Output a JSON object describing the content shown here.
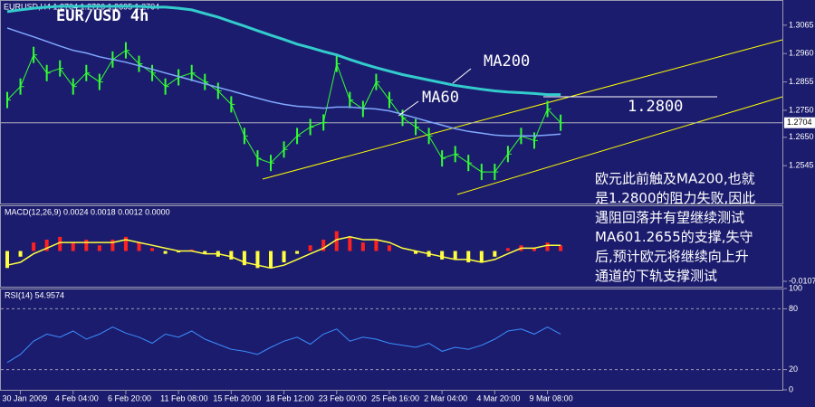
{
  "chart_data": [
    {
      "type": "line",
      "title": "EUR/USD 4h",
      "subtitle": "EURUSD,H4 1.2704 1.2726 1.2695 1.2704",
      "ylim": [
        1.2405,
        1.3155
      ],
      "yticks": [
        1.3065,
        {
          "value": 1.296,
          "label": "1.2960"
        },
        1.2855,
        {
          "value": 1.275,
          "label": "1.2750"
        },
        {
          "value": 1.265,
          "label": "1.2650"
        },
        1.2545
      ],
      "last_price": 1.2704,
      "hline": {
        "value": 1.28,
        "label": "1.2800"
      },
      "note": [
        "欧元此前触及MA200,也就",
        "是1.2800的阻力失败,因此",
        "遇阻回落并有望继续测试",
        "MA601.2655的支撑,失守",
        "后,预计欧元将继续向上升",
        "通道的下轨支撑测试"
      ],
      "series": [
        {
          "color": "#33ff33",
          "values": [
            1.2788,
            1.2838,
            1.2955,
            1.2888,
            1.2905,
            1.2838,
            1.2888,
            1.2855,
            1.2938,
            1.2972,
            1.2922,
            1.2888,
            1.2838,
            1.2872,
            1.2888,
            1.2855,
            1.2822,
            1.2772,
            1.2655,
            1.2572,
            1.2555,
            1.2605,
            1.2655,
            1.2688,
            1.2705,
            1.2922,
            1.2788,
            1.2755,
            1.2855,
            1.2788,
            1.2722,
            1.2688,
            1.2655,
            1.2572,
            1.2588,
            1.2555,
            1.2522,
            1.2522,
            1.2588,
            1.2655,
            1.2638,
            1.2755,
            1.2704
          ]
        },
        {
          "name": "MA200",
          "color": "#33cccc",
          "values": [
            1.3115,
            1.3122,
            1.3128,
            1.3132,
            1.3135,
            1.3135,
            1.3135,
            1.3135,
            1.3135,
            1.3135,
            1.3135,
            1.3132,
            1.3132,
            1.3128,
            1.3122,
            1.3108,
            1.3095,
            1.3078,
            1.3062,
            1.3045,
            1.3028,
            1.3012,
            1.2995,
            1.2982,
            1.2968,
            1.2955,
            1.2938,
            1.2922,
            1.2908,
            1.2895,
            1.2882,
            1.2872,
            1.2862,
            1.2852,
            1.2842,
            1.2835,
            1.2828,
            1.2822,
            1.2818,
            1.2815,
            1.2812,
            1.2808,
            1.2808
          ]
        },
        {
          "name": "MA60",
          "color": "#7fa8ff",
          "values": [
            1.3055,
            1.3038,
            1.3022,
            1.3005,
            1.2988,
            1.2972,
            1.2962,
            1.2948,
            1.2938,
            1.2928,
            1.2915,
            1.2902,
            1.2888,
            1.2875,
            1.2862,
            1.2848,
            1.2835,
            1.2822,
            1.2808,
            1.2795,
            1.2782,
            1.2772,
            1.2765,
            1.2762,
            1.2758,
            1.2762,
            1.2762,
            1.2758,
            1.2755,
            1.2748,
            1.2735,
            1.2722,
            1.2708,
            1.2695,
            1.2682,
            1.2672,
            1.2665,
            1.2658,
            1.2655,
            1.2655,
            1.2655,
            1.2658,
            1.2662
          ]
        }
      ]
    },
    {
      "type": "macd",
      "title": "MACD(12,26,9) 0.0024 0.0018 0.0012 0.0000",
      "ylim": [
        -0.0126,
        0.0158
      ],
      "yticks": [
        -0.0107
      ],
      "series": [
        {
          "color": "#ff2020",
          "values": [
            -0.006,
            -0.002,
            0.003,
            0.004,
            0.005,
            0.003,
            0.004,
            0.002,
            0.004,
            0.005,
            0.003,
            0.001,
            -0.001,
            -0.0005,
            0.0005,
            -0.001,
            -0.002,
            -0.003,
            -0.005,
            -0.006,
            -0.006,
            -0.004,
            -0.001,
            0.002,
            0.004,
            0.007,
            0.005,
            0.003,
            0.004,
            0.002,
            0.0,
            -0.001,
            -0.002,
            -0.003,
            -0.003,
            -0.004,
            -0.004,
            -0.002,
            0.001,
            0.002,
            0.001,
            0.003,
            0.002
          ]
        },
        {
          "color": "#ffff40",
          "values": [
            -0.005,
            -0.004,
            -0.001,
            0.001,
            0.003,
            0.003,
            0.003,
            0.003,
            0.003,
            0.004,
            0.003,
            0.002,
            0.001,
            0.0,
            0.0,
            -0.001,
            -0.001,
            -0.002,
            -0.004,
            -0.005,
            -0.006,
            -0.005,
            -0.003,
            -0.001,
            0.001,
            0.004,
            0.005,
            0.004,
            0.004,
            0.003,
            0.001,
            0.0,
            -0.001,
            -0.002,
            -0.003,
            -0.003,
            -0.004,
            -0.003,
            -0.001,
            0.001,
            0.001,
            0.002,
            0.002
          ]
        }
      ]
    },
    {
      "type": "rsi",
      "title": "RSI(14) 54.9574",
      "ylim": [
        0,
        100
      ],
      "yticks": [
        100,
        80,
        20,
        0
      ],
      "categories": [
        null,
        "30 Jan 2009",
        null,
        null,
        null,
        "4 Feb 04:00",
        null,
        null,
        null,
        "6 Feb 20:00",
        null,
        null,
        null,
        "11 Feb 08:00",
        null,
        null,
        null,
        "15 Feb 20:00",
        null,
        null,
        null,
        "18 Feb 12:00",
        null,
        null,
        null,
        "23 Feb 00:00",
        null,
        null,
        null,
        "25 Feb 16:00",
        null,
        null,
        null,
        "2 Mar 04:00",
        null,
        null,
        null,
        "4 Mar 20:00",
        null,
        null,
        null,
        "9 Mar 08:00",
        null
      ],
      "series": [
        {
          "color": "#3a8fff",
          "values": [
            27,
            35,
            48,
            55,
            52,
            58,
            50,
            55,
            62,
            56,
            52,
            46,
            55,
            52,
            58,
            50,
            45,
            40,
            38,
            35,
            42,
            48,
            52,
            45,
            55,
            60,
            48,
            52,
            50,
            46,
            44,
            42,
            46,
            38,
            42,
            40,
            44,
            50,
            58,
            60,
            55,
            62,
            55
          ]
        }
      ]
    }
  ]
}
